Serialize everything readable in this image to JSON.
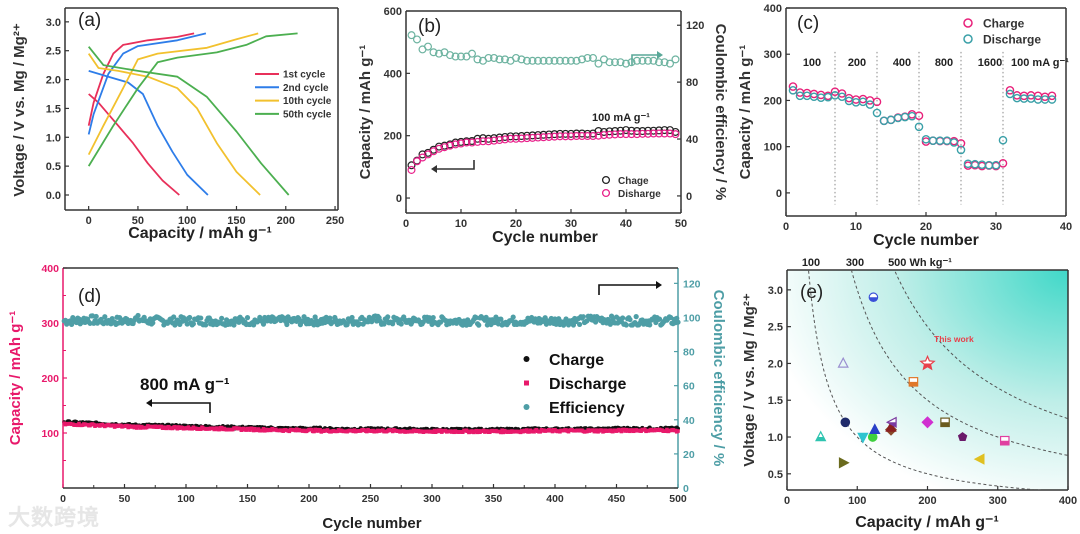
{
  "watermark": "大数跨境",
  "colors": {
    "axis": "#333333",
    "pink": "#e8196b",
    "teal": "#4e9ea6",
    "mint": "#6db3a0",
    "red": "#e8305a",
    "blue": "#2e7de9",
    "yellow": "#f2c12e",
    "green": "#4caf50",
    "this_work": "#e8404a"
  },
  "chart_data": [
    {
      "id": "a",
      "type": "line",
      "panel_label": "(a)",
      "xlabel": "Capacity / mAh g⁻¹",
      "ylabel": "Voltage / V vs. Mg / Mg²⁺",
      "xlim": [
        -24,
        253
      ],
      "ylim": [
        -0.26,
        3.24
      ],
      "xticks": [
        "0",
        "50",
        "100",
        "150",
        "200",
        "250"
      ],
      "yticks": [
        "0.0",
        "0.5",
        "1.0",
        "1.5",
        "2.0",
        "2.5",
        "3.0"
      ],
      "legend_position": "center-right",
      "series": [
        {
          "name": "1st cycle",
          "color": "#e8305a",
          "charge": [
            [
              0,
              1.2
            ],
            [
              5,
              1.6
            ],
            [
              15,
              2.1
            ],
            [
              25,
              2.45
            ],
            [
              35,
              2.6
            ],
            [
              60,
              2.68
            ],
            [
              90,
              2.74
            ],
            [
              107,
              2.8
            ]
          ],
          "discharge": [
            [
              0,
              1.75
            ],
            [
              10,
              1.6
            ],
            [
              30,
              1.2
            ],
            [
              45,
              0.9
            ],
            [
              60,
              0.55
            ],
            [
              75,
              0.25
            ],
            [
              92,
              0
            ]
          ]
        },
        {
          "name": "2nd cycle",
          "color": "#2e7de9",
          "charge": [
            [
              0,
              1.05
            ],
            [
              5,
              1.4
            ],
            [
              20,
              2.1
            ],
            [
              35,
              2.45
            ],
            [
              50,
              2.58
            ],
            [
              90,
              2.68
            ],
            [
              119,
              2.8
            ]
          ],
          "discharge": [
            [
              0,
              2.15
            ],
            [
              20,
              2.05
            ],
            [
              40,
              1.95
            ],
            [
              55,
              1.75
            ],
            [
              70,
              1.2
            ],
            [
              85,
              0.75
            ],
            [
              100,
              0.35
            ],
            [
              121,
              0
            ]
          ]
        },
        {
          "name": "10th cycle",
          "color": "#f2c12e",
          "charge": [
            [
              0,
              0.7
            ],
            [
              15,
              1.2
            ],
            [
              35,
              1.85
            ],
            [
              50,
              2.35
            ],
            [
              70,
              2.45
            ],
            [
              120,
              2.55
            ],
            [
              150,
              2.7
            ],
            [
              172,
              2.8
            ]
          ],
          "discharge": [
            [
              0,
              2.45
            ],
            [
              10,
              2.2
            ],
            [
              30,
              2.15
            ],
            [
              60,
              2.05
            ],
            [
              90,
              1.85
            ],
            [
              110,
              1.5
            ],
            [
              130,
              0.9
            ],
            [
              150,
              0.4
            ],
            [
              174,
              0
            ]
          ]
        },
        {
          "name": "50th cycle",
          "color": "#4caf50",
          "charge": [
            [
              0,
              0.5
            ],
            [
              25,
              1.2
            ],
            [
              50,
              1.85
            ],
            [
              70,
              2.3
            ],
            [
              90,
              2.38
            ],
            [
              130,
              2.47
            ],
            [
              160,
              2.6
            ],
            [
              180,
              2.75
            ],
            [
              212,
              2.8
            ]
          ],
          "discharge": [
            [
              0,
              2.57
            ],
            [
              15,
              2.25
            ],
            [
              50,
              2.15
            ],
            [
              90,
              2.05
            ],
            [
              120,
              1.7
            ],
            [
              150,
              1.1
            ],
            [
              175,
              0.55
            ],
            [
              203,
              0
            ]
          ]
        }
      ]
    },
    {
      "id": "b",
      "type": "scatter",
      "panel_label": "(b)",
      "xlabel": "Cycle number",
      "ylabel": "Capacity / mAh g⁻¹",
      "y2label": "Coulombic efficiency / %",
      "xlim": [
        0,
        50
      ],
      "ylim": [
        -48,
        600
      ],
      "y2lim": [
        -12,
        130
      ],
      "xticks": [
        "0",
        "10",
        "20",
        "30",
        "40",
        "50"
      ],
      "yticks": [
        "0",
        "200",
        "400",
        "600"
      ],
      "y2ticks": [
        "0",
        "40",
        "80",
        "120"
      ],
      "annotation": "100 mA g⁻¹",
      "legend_position": "bottom-right",
      "series": [
        {
          "name": "Chage",
          "axis": "left",
          "color": "#222222",
          "values": [
            105,
            120,
            140,
            145,
            155,
            165,
            168,
            172,
            178,
            180,
            182,
            183,
            190,
            192,
            190,
            192,
            194,
            196,
            198,
            198,
            199,
            200,
            201,
            202,
            203,
            204,
            205,
            206,
            206,
            206,
            207,
            207,
            206,
            207,
            215,
            212,
            214,
            215,
            216,
            218,
            216,
            215,
            215,
            216,
            216,
            217,
            218,
            218,
            212
          ]
        },
        {
          "name": "Disharge",
          "axis": "left",
          "color": "#e8208a",
          "values": [
            90,
            118,
            130,
            140,
            150,
            158,
            163,
            168,
            172,
            175,
            178,
            178,
            180,
            182,
            182,
            184,
            186,
            188,
            190,
            190,
            191,
            192,
            193,
            194,
            195,
            196,
            197,
            198,
            198,
            198,
            199,
            199,
            199,
            199,
            200,
            202,
            203,
            204,
            205,
            205,
            205,
            205,
            206,
            206,
            207,
            207,
            207,
            207,
            205
          ]
        },
        {
          "name": "Coulombic efficiency",
          "axis": "right",
          "color": "#6db3a0",
          "values": [
            113,
            110,
            103,
            105,
            101,
            100,
            101,
            99,
            98,
            98,
            98,
            100,
            96,
            95,
            97,
            97,
            96,
            96,
            95,
            97,
            96,
            95,
            95,
            95,
            95,
            95,
            95,
            95,
            95,
            95,
            95,
            96,
            97,
            97,
            93,
            96,
            94,
            94,
            94,
            93,
            94,
            95,
            95,
            95,
            95,
            94,
            94,
            93,
            96
          ]
        }
      ]
    },
    {
      "id": "c",
      "type": "scatter",
      "panel_label": "(c)",
      "xlabel": "Cycle number",
      "ylabel": "Capacity / mAh g⁻¹",
      "xlim": [
        0,
        40
      ],
      "ylim": [
        -50,
        400
      ],
      "xticks": [
        "0",
        "10",
        "20",
        "30",
        "40"
      ],
      "yticks": [
        "0",
        "100",
        "200",
        "300",
        "400"
      ],
      "legend_position": "top-right",
      "rate_dividers": [
        7,
        13,
        19,
        25,
        31
      ],
      "rate_labels": [
        "100",
        "200",
        "400",
        "800",
        "1600",
        "100 mA g⁻¹"
      ],
      "series": [
        {
          "name": "Charge",
          "color": "#e8207a",
          "values": [
            230,
            217,
            216,
            214,
            212,
            210,
            219,
            215,
            205,
            202,
            203,
            200,
            197,
            156,
            158,
            163,
            165,
            170,
            167,
            111,
            113,
            112,
            112,
            112,
            107,
            59,
            60,
            58,
            59,
            58,
            64,
            222,
            211,
            210,
            211,
            210,
            208,
            210
          ]
        },
        {
          "name": "Discharge",
          "color": "#3aa0a8",
          "values": [
            222,
            210,
            210,
            208,
            206,
            207,
            211,
            208,
            199,
            196,
            197,
            191,
            173,
            156,
            158,
            162,
            164,
            166,
            143,
            116,
            113,
            113,
            113,
            109,
            93,
            63,
            62,
            61,
            60,
            60,
            114,
            214,
            205,
            204,
            204,
            202,
            202,
            202
          ]
        }
      ]
    },
    {
      "id": "d",
      "type": "scatter",
      "panel_label": "(d)",
      "xlabel": "Cycle number",
      "ylabel": "Capacity / mAh g⁻¹",
      "y2label": "Coulombic efficiency / %",
      "xlim": [
        0,
        500
      ],
      "ylim": [
        0,
        400
      ],
      "y2lim": [
        0,
        129
      ],
      "xticks": [
        "0",
        "50",
        "100",
        "150",
        "200",
        "250",
        "300",
        "350",
        "400",
        "450",
        "500"
      ],
      "yticks": [
        "100",
        "200",
        "300",
        "400"
      ],
      "y2ticks": [
        "0",
        "20",
        "40",
        "60",
        "80",
        "100",
        "120"
      ],
      "annotation": "800 mA g⁻¹",
      "legend_position": "center-right",
      "sample_step_cycles": 10,
      "series": [
        {
          "name": "Charge",
          "axis": "left",
          "color": "#111111",
          "values": [
            120,
            119,
            118,
            117,
            116,
            115,
            114,
            114,
            113,
            113,
            112,
            112,
            111,
            111,
            110,
            110,
            109,
            109,
            108,
            108,
            108,
            108,
            107,
            107,
            107,
            107,
            107,
            107,
            107,
            106,
            106,
            106,
            106,
            106,
            106,
            106,
            106,
            106,
            107,
            107,
            107,
            107,
            107,
            107,
            107,
            108,
            108,
            108,
            108,
            108,
            108
          ]
        },
        {
          "name": "Discharge",
          "axis": "left",
          "color": "#e8196b",
          "values": [
            116,
            116,
            115,
            114,
            113,
            112,
            111,
            111,
            110,
            110,
            109,
            109,
            108,
            108,
            107,
            107,
            106,
            106,
            105,
            105,
            105,
            104,
            104,
            104,
            104,
            104,
            104,
            104,
            103,
            103,
            103,
            103,
            103,
            103,
            103,
            103,
            103,
            103,
            104,
            104,
            104,
            104,
            104,
            104,
            104,
            104,
            105,
            105,
            105,
            105,
            104
          ]
        },
        {
          "name": "Efficiency",
          "axis": "right",
          "color": "#4e9ea6",
          "values": [
            98,
            98,
            99,
            98,
            98,
            98,
            99,
            98,
            98,
            98,
            98,
            98,
            98,
            98,
            98,
            98,
            98,
            98,
            98,
            98,
            98,
            98,
            98,
            98,
            98,
            99,
            98,
            98,
            98,
            98,
            98,
            98,
            98,
            98,
            98,
            98,
            98,
            98,
            98,
            98,
            98,
            98,
            98,
            99,
            99,
            98,
            98,
            98,
            98,
            98,
            98
          ]
        }
      ]
    },
    {
      "id": "e",
      "type": "scatter",
      "panel_label": "(e)",
      "xlabel": "Capacity / mAh g⁻¹",
      "ylabel": "Voltage / V vs. Mg / Mg²⁺",
      "xlim": [
        0,
        400
      ],
      "ylim": [
        0.28,
        3.27
      ],
      "xticks": [
        "0",
        "100",
        "200",
        "300",
        "400"
      ],
      "yticks": [
        "0.5",
        "1.0",
        "1.5",
        "2.0",
        "2.5",
        "3.0"
      ],
      "energy_density_curves": [
        100,
        300,
        500
      ],
      "energy_labels": [
        "100",
        "300",
        "500 Wh kg⁻¹"
      ],
      "highlight_label": "This work",
      "points": [
        {
          "x": 48,
          "y": 1.0,
          "shape": "triangle-up",
          "color": "#2ec4b0",
          "fill": "half"
        },
        {
          "x": 80,
          "y": 2.0,
          "shape": "triangle-up",
          "color": "#9a8fd0",
          "fill": "open"
        },
        {
          "x": 80,
          "y": 0.65,
          "shape": "triangle-right",
          "color": "#6b6b1e",
          "fill": "full"
        },
        {
          "x": 83,
          "y": 1.2,
          "shape": "circle",
          "color": "#1f2a6b",
          "fill": "full"
        },
        {
          "x": 108,
          "y": 1.0,
          "shape": "triangle-down",
          "color": "#2ec4d0",
          "fill": "full"
        },
        {
          "x": 122,
          "y": 1.0,
          "shape": "circle",
          "color": "#3ecf3e",
          "fill": "full"
        },
        {
          "x": 123,
          "y": 2.9,
          "shape": "circle",
          "color": "#3a4fd8",
          "fill": "half"
        },
        {
          "x": 125,
          "y": 1.1,
          "shape": "triangle-up",
          "color": "#2840c8",
          "fill": "full"
        },
        {
          "x": 148,
          "y": 1.1,
          "shape": "diamond",
          "color": "#8a4a2a",
          "fill": "half"
        },
        {
          "x": 148,
          "y": 1.13,
          "shape": "triangle-up",
          "color": "#8a2020",
          "fill": "full"
        },
        {
          "x": 150,
          "y": 1.2,
          "shape": "triangle-left",
          "color": "#7a3aa0",
          "fill": "half"
        },
        {
          "x": 180,
          "y": 1.75,
          "shape": "square",
          "color": "#e0782a",
          "fill": "half"
        },
        {
          "x": 200,
          "y": 2.0,
          "shape": "star",
          "color": "#e8404a",
          "fill": "half"
        },
        {
          "x": 200,
          "y": 1.2,
          "shape": "diamond",
          "color": "#d030d0",
          "fill": "full"
        },
        {
          "x": 225,
          "y": 1.2,
          "shape": "square",
          "color": "#6b5a1e",
          "fill": "half"
        },
        {
          "x": 250,
          "y": 1.0,
          "shape": "pentagon",
          "color": "#6a1a6a",
          "fill": "full"
        },
        {
          "x": 275,
          "y": 0.7,
          "shape": "triangle-left",
          "color": "#e0c020",
          "fill": "full"
        },
        {
          "x": 310,
          "y": 0.95,
          "shape": "square",
          "color": "#e040a0",
          "fill": "half"
        }
      ]
    }
  ]
}
